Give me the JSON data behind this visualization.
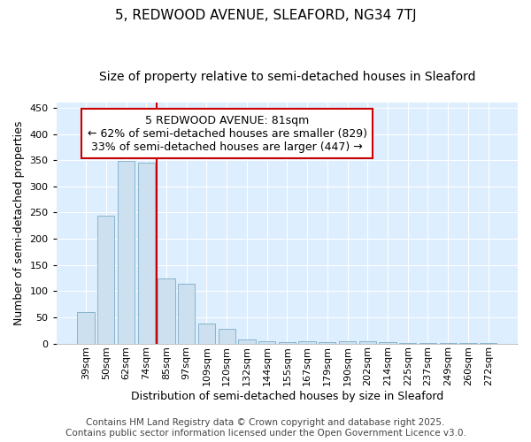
{
  "title": "5, REDWOOD AVENUE, SLEAFORD, NG34 7TJ",
  "subtitle": "Size of property relative to semi-detached houses in Sleaford",
  "xlabel": "Distribution of semi-detached houses by size in Sleaford",
  "ylabel": "Number of semi-detached properties",
  "categories": [
    "39sqm",
    "50sqm",
    "62sqm",
    "74sqm",
    "85sqm",
    "97sqm",
    "109sqm",
    "120sqm",
    "132sqm",
    "144sqm",
    "155sqm",
    "167sqm",
    "179sqm",
    "190sqm",
    "202sqm",
    "214sqm",
    "225sqm",
    "237sqm",
    "249sqm",
    "260sqm",
    "272sqm"
  ],
  "values": [
    60,
    244,
    348,
    345,
    124,
    114,
    38,
    28,
    8,
    5,
    2,
    5,
    2,
    5,
    4,
    2,
    1,
    1,
    1,
    1,
    1
  ],
  "bar_color": "#cce0f0",
  "bar_edge_color": "#8ab4cc",
  "red_line_x": 3.5,
  "annotation_title": "5 REDWOOD AVENUE: 81sqm",
  "annotation_line1": "← 62% of semi-detached houses are smaller (829)",
  "annotation_line2": "33% of semi-detached houses are larger (447) →",
  "annotation_box_color": "#ffffff",
  "annotation_box_edge_color": "#cc0000",
  "footer_line1": "Contains HM Land Registry data © Crown copyright and database right 2025.",
  "footer_line2": "Contains public sector information licensed under the Open Government Licence v3.0.",
  "fig_bg_color": "#ffffff",
  "plot_bg_color": "#ddeeff",
  "ylim": [
    0,
    460
  ],
  "yticks": [
    0,
    50,
    100,
    150,
    200,
    250,
    300,
    350,
    400,
    450
  ],
  "grid_color": "#ffffff",
  "title_fontsize": 11,
  "subtitle_fontsize": 10,
  "axis_label_fontsize": 9,
  "tick_fontsize": 8,
  "annotation_fontsize": 9,
  "footer_fontsize": 7.5
}
